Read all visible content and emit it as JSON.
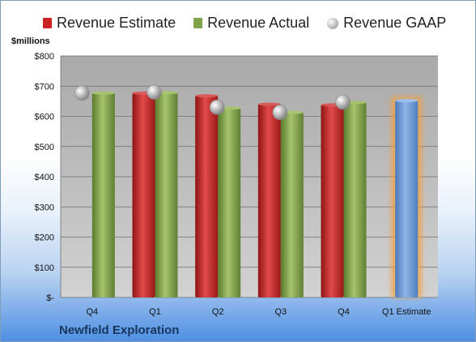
{
  "chart_data": {
    "type": "bar",
    "title": "",
    "unit_label": "$millions",
    "company": "Newfield Exploration",
    "categories": [
      "Q4",
      "Q1",
      "Q2",
      "Q3",
      "Q4",
      "Q1 Estimate"
    ],
    "ylim": [
      0,
      800
    ],
    "yticks": [
      0,
      100,
      200,
      300,
      400,
      500,
      600,
      700,
      800
    ],
    "ytick_labels": [
      "$-",
      "$100",
      "$200",
      "$300",
      "$400",
      "$500",
      "$600",
      "$700",
      "$800"
    ],
    "grid": true,
    "legend_position": "top",
    "series": [
      {
        "name": "Revenue Estimate",
        "kind": "bar",
        "color": "#cc2222",
        "values": [
          null,
          677,
          668,
          640,
          638,
          652
        ]
      },
      {
        "name": "Revenue Actual",
        "kind": "bar",
        "color": "#7fa24a",
        "values": [
          677,
          678,
          627,
          613,
          646,
          null
        ]
      },
      {
        "name": "Revenue GAAP",
        "kind": "marker",
        "color": "#b0b0b0",
        "values": [
          677,
          680,
          630,
          613,
          647,
          null
        ]
      }
    ],
    "estimate_bar_color": "#6f9cd6"
  }
}
